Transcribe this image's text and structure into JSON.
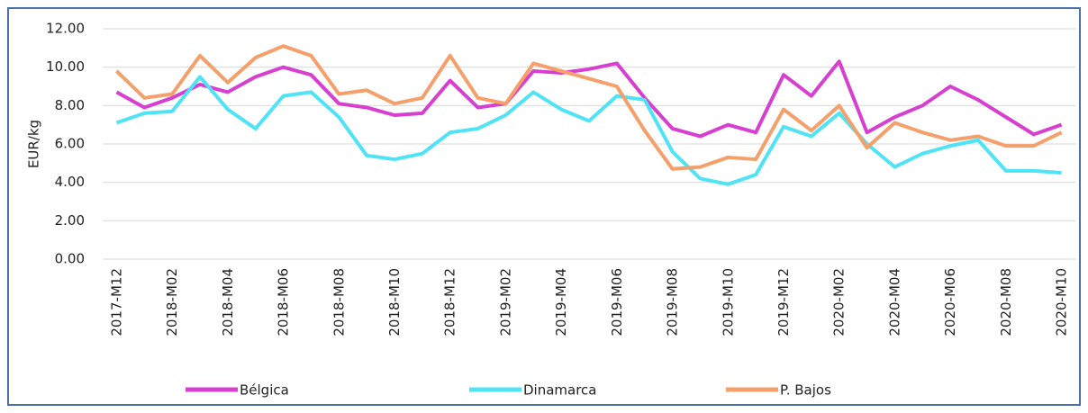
{
  "chart_data": {
    "type": "line",
    "y_label": "EUR/kg",
    "categories": [
      "2017-M12",
      null,
      "2018-M02",
      null,
      "2018-M04",
      null,
      "2018-M06",
      null,
      "2018-M08",
      null,
      "2018-M10",
      null,
      "2018-M12",
      null,
      "2019-M02",
      null,
      "2019-M04",
      null,
      "2019-M06",
      null,
      "2019-M08",
      null,
      "2019-M10",
      null,
      "2019-M12",
      null,
      "2020-M02",
      null,
      "2020-M04",
      null,
      "2020-M06",
      null,
      "2020-M08",
      null,
      "2020-M10"
    ],
    "series": [
      {
        "name": "Bélgica",
        "color": "#d63fcf",
        "values": [
          8.7,
          7.9,
          8.4,
          9.1,
          8.7,
          9.5,
          10.0,
          9.6,
          8.1,
          7.9,
          7.5,
          7.6,
          9.3,
          7.9,
          8.1,
          9.8,
          9.7,
          9.9,
          10.2,
          8.4,
          6.8,
          6.4,
          7.0,
          6.6,
          9.6,
          8.5,
          10.3,
          6.6,
          7.4,
          8.0,
          9.0,
          8.3,
          7.4,
          6.5,
          7.0
        ]
      },
      {
        "name": "Dinamarca",
        "color": "#4fe3f5",
        "values": [
          7.1,
          7.6,
          7.7,
          9.5,
          7.8,
          6.8,
          8.5,
          8.7,
          7.4,
          5.4,
          5.2,
          5.5,
          6.6,
          6.8,
          7.5,
          8.7,
          7.8,
          7.2,
          8.5,
          8.3,
          5.6,
          4.2,
          3.9,
          4.4,
          6.9,
          6.4,
          7.6,
          6.0,
          4.8,
          5.5,
          5.9,
          6.2,
          4.6,
          4.6,
          4.5
        ]
      },
      {
        "name": "P. Bajos",
        "color": "#f5a06b",
        "values": [
          9.8,
          8.4,
          8.6,
          10.6,
          9.2,
          10.5,
          11.1,
          10.6,
          8.6,
          8.8,
          8.1,
          8.4,
          10.6,
          8.4,
          8.1,
          10.2,
          9.8,
          9.4,
          9.0,
          6.7,
          4.7,
          4.8,
          5.3,
          5.2,
          7.8,
          6.7,
          8.0,
          5.8,
          7.1,
          6.6,
          6.2,
          6.4,
          5.9,
          5.9,
          6.6
        ]
      }
    ],
    "ylim": [
      0,
      12
    ],
    "yticks": [
      {
        "value": 0,
        "label": "0.00"
      },
      {
        "value": 2,
        "label": "2.00"
      },
      {
        "value": 4,
        "label": "4.00"
      },
      {
        "value": 6,
        "label": "6.00"
      },
      {
        "value": 8,
        "label": "8.00"
      },
      {
        "value": 10,
        "label": "10.00"
      },
      {
        "value": 12,
        "label": "12.00"
      }
    ],
    "grid": true,
    "legend": "bottom"
  }
}
